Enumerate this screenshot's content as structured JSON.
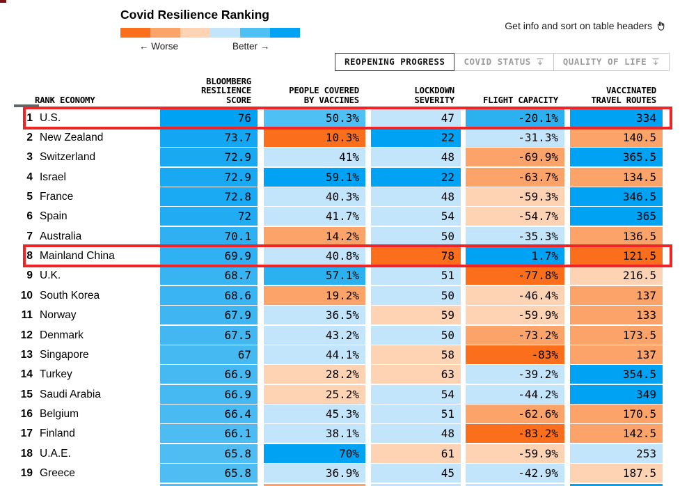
{
  "title": "Covid Resilience Ranking",
  "legend": {
    "worse_label": "← Worse",
    "better_label": "Better →",
    "colors": [
      "#fb6e1b",
      "#fca369",
      "#fdd3b4",
      "#c2e5fb",
      "#4fc0f4",
      "#00a2f3"
    ]
  },
  "info_note": {
    "text": "Get info and sort on table headers",
    "icon": "hand-cursor-icon"
  },
  "tabs": [
    {
      "name": "tab-reopening-progress",
      "label": "REOPENING PROGRESS",
      "active": true,
      "filter_icon": false
    },
    {
      "name": "tab-covid-status",
      "label": "COVID STATUS",
      "active": false,
      "filter_icon": true
    },
    {
      "name": "tab-quality-of-life",
      "label": "QUALITY OF LIFE",
      "active": false,
      "filter_icon": true
    }
  ],
  "palette": {
    "o3": "#fb6e1b",
    "o2": "#fca369",
    "o1": "#fdd3b4",
    "b1": "#c2e5fb",
    "b2": "#4fc0f4",
    "b2s": "#2bb1f0",
    "b3": "#00a2f3"
  },
  "annotations": {
    "box_color": "#ee2426",
    "highlighted_row_indexes": [
      0,
      7
    ]
  },
  "chart_data": {
    "type": "heatmap-table",
    "title": "Covid Resilience Ranking",
    "legend": "diverging orange (worse) to blue (better), 6 steps",
    "header_lines": {
      "rank_economy": [
        "RANK ECONOMY"
      ],
      "score": [
        "BLOOMBERG",
        "RESILIENCE",
        "SCORE"
      ],
      "vaccines": [
        "PEOPLE COVERED",
        "BY VACCINES"
      ],
      "lockdown": [
        "LOCKDOWN",
        "SEVERITY"
      ],
      "flight": [
        "FLIGHT CAPACITY"
      ],
      "routes": [
        "VACCINATED",
        "TRAVEL ROUTES"
      ]
    },
    "columns": [
      "Rank",
      "Economy",
      "Bloomberg Resilience Score",
      "People Covered by Vaccines",
      "Lockdown Severity",
      "Flight Capacity",
      "Vaccinated Travel Routes"
    ],
    "rows": [
      {
        "rank": "1",
        "economy": "U.S.",
        "score": "76",
        "score_color": "#00a2f3",
        "vaccines": "50.3%",
        "vaccines_color": "b2",
        "lockdown": "47",
        "lockdown_color": "b1",
        "flight": "-20.1%",
        "flight_color": "b2s",
        "routes": "334",
        "routes_color": "b3"
      },
      {
        "rank": "2",
        "economy": "New Zealand",
        "score": "73.7",
        "score_color": "#13a7f3",
        "vaccines": "10.3%",
        "vaccines_color": "o3",
        "lockdown": "22",
        "lockdown_color": "b3",
        "flight": "-31.3%",
        "flight_color": "b1",
        "routes": "140.5",
        "routes_color": "o2"
      },
      {
        "rank": "3",
        "economy": "Switzerland",
        "score": "72.9",
        "score_color": "#19a9f3",
        "vaccines": "41%",
        "vaccines_color": "b1",
        "lockdown": "48",
        "lockdown_color": "b1",
        "flight": "-69.9%",
        "flight_color": "o2",
        "routes": "365.5",
        "routes_color": "b3"
      },
      {
        "rank": "4",
        "economy": "Israel",
        "score": "72.9",
        "score_color": "#19a9f3",
        "vaccines": "59.1%",
        "vaccines_color": "b3",
        "lockdown": "22",
        "lockdown_color": "b3",
        "flight": "-63.7%",
        "flight_color": "o2",
        "routes": "134.5",
        "routes_color": "o2"
      },
      {
        "rank": "5",
        "economy": "France",
        "score": "72.8",
        "score_color": "#1aa9f3",
        "vaccines": "40.3%",
        "vaccines_color": "b1",
        "lockdown": "48",
        "lockdown_color": "b1",
        "flight": "-59.3%",
        "flight_color": "o1",
        "routes": "346.5",
        "routes_color": "b3"
      },
      {
        "rank": "6",
        "economy": "Spain",
        "score": "72",
        "score_color": "#20abf3",
        "vaccines": "41.7%",
        "vaccines_color": "b1",
        "lockdown": "54",
        "lockdown_color": "b1",
        "flight": "-54.7%",
        "flight_color": "o1",
        "routes": "365",
        "routes_color": "b3"
      },
      {
        "rank": "7",
        "economy": "Australia",
        "score": "70.1",
        "score_color": "#2eb0f3",
        "vaccines": "14.2%",
        "vaccines_color": "o2",
        "lockdown": "50",
        "lockdown_color": "b1",
        "flight": "-35.3%",
        "flight_color": "b1",
        "routes": "136.5",
        "routes_color": "o2"
      },
      {
        "rank": "8",
        "economy": "Mainland China",
        "score": "69.9",
        "score_color": "#30b1f3",
        "vaccines": "40.8%",
        "vaccines_color": "b1",
        "lockdown": "78",
        "lockdown_color": "o3",
        "flight": "1.7%",
        "flight_color": "b3",
        "routes": "121.5",
        "routes_color": "o3"
      },
      {
        "rank": "9",
        "economy": "U.K.",
        "score": "68.7",
        "score_color": "#39b4f2",
        "vaccines": "57.1%",
        "vaccines_color": "b2s",
        "lockdown": "51",
        "lockdown_color": "b1",
        "flight": "-77.8%",
        "flight_color": "o3",
        "routes": "216.5",
        "routes_color": "o1"
      },
      {
        "rank": "10",
        "economy": "South Korea",
        "score": "68.6",
        "score_color": "#3ab4f2",
        "vaccines": "19.2%",
        "vaccines_color": "o2",
        "lockdown": "50",
        "lockdown_color": "b1",
        "flight": "-46.4%",
        "flight_color": "o1",
        "routes": "137",
        "routes_color": "o2"
      },
      {
        "rank": "11",
        "economy": "Norway",
        "score": "67.9",
        "score_color": "#3fb6f2",
        "vaccines": "36.5%",
        "vaccines_color": "b1",
        "lockdown": "59",
        "lockdown_color": "o1",
        "flight": "-59.9%",
        "flight_color": "o1",
        "routes": "133",
        "routes_color": "o2"
      },
      {
        "rank": "12",
        "economy": "Denmark",
        "score": "67.5",
        "score_color": "#42b7f2",
        "vaccines": "43.2%",
        "vaccines_color": "b1",
        "lockdown": "50",
        "lockdown_color": "b1",
        "flight": "-73.2%",
        "flight_color": "o2",
        "routes": "173.5",
        "routes_color": "o2"
      },
      {
        "rank": "13",
        "economy": "Singapore",
        "score": "67",
        "score_color": "#45b9f2",
        "vaccines": "44.1%",
        "vaccines_color": "b1",
        "lockdown": "58",
        "lockdown_color": "o1",
        "flight": "-83%",
        "flight_color": "o3",
        "routes": "137",
        "routes_color": "o2"
      },
      {
        "rank": "14",
        "economy": "Turkey",
        "score": "66.9",
        "score_color": "#46b9f2",
        "vaccines": "28.2%",
        "vaccines_color": "o1",
        "lockdown": "63",
        "lockdown_color": "o1",
        "flight": "-39.2%",
        "flight_color": "b1",
        "routes": "354.5",
        "routes_color": "b3"
      },
      {
        "rank": "15",
        "economy": "Saudi Arabia",
        "score": "66.9",
        "score_color": "#46b9f2",
        "vaccines": "25.2%",
        "vaccines_color": "o1",
        "lockdown": "54",
        "lockdown_color": "b1",
        "flight": "-44.2%",
        "flight_color": "b1",
        "routes": "349",
        "routes_color": "b3"
      },
      {
        "rank": "16",
        "economy": "Belgium",
        "score": "66.4",
        "score_color": "#4abbf2",
        "vaccines": "45.3%",
        "vaccines_color": "b1",
        "lockdown": "51",
        "lockdown_color": "b1",
        "flight": "-62.6%",
        "flight_color": "o2",
        "routes": "170.5",
        "routes_color": "o2"
      },
      {
        "rank": "17",
        "economy": "Finland",
        "score": "66.1",
        "score_color": "#4dbcf2",
        "vaccines": "38.1%",
        "vaccines_color": "b1",
        "lockdown": "48",
        "lockdown_color": "b1",
        "flight": "-83.2%",
        "flight_color": "o3",
        "routes": "142.5",
        "routes_color": "o2"
      },
      {
        "rank": "18",
        "economy": "U.A.E.",
        "score": "65.8",
        "score_color": "#4fbdf2",
        "vaccines": "70%",
        "vaccines_color": "b3",
        "lockdown": "61",
        "lockdown_color": "o1",
        "flight": "-59.9%",
        "flight_color": "o1",
        "routes": "253",
        "routes_color": "b1"
      },
      {
        "rank": "19",
        "economy": "Greece",
        "score": "65.8",
        "score_color": "#4fbdf2",
        "vaccines": "36.9%",
        "vaccines_color": "b1",
        "lockdown": "45",
        "lockdown_color": "b1",
        "flight": "-42.9%",
        "flight_color": "b1",
        "routes": "187.5",
        "routes_color": "o1"
      }
    ],
    "partial_row_colors": {
      "score": "#51bef2",
      "vaccines": "o2",
      "lockdown": "b1",
      "flight": "b1",
      "routes": "b3"
    }
  }
}
